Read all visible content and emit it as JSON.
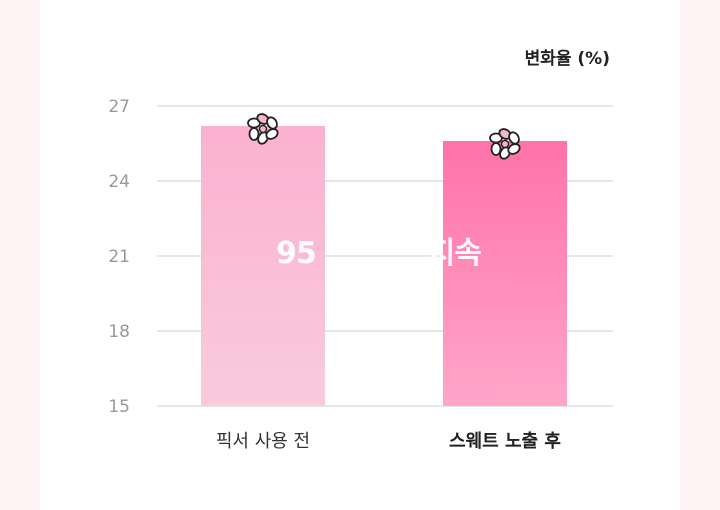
{
  "chart_data": {
    "type": "bar",
    "ylabel": "변화율 (%)",
    "categories": [
      "픽서 사용 전",
      "스웨트 노출 후"
    ],
    "values": [
      26.2,
      25.6
    ],
    "ylim": [
      15,
      27
    ],
    "yticks": [
      "15",
      "18",
      "21",
      "24",
      "27"
    ],
    "grid": true,
    "highlight_category": "스웨트 노출 후",
    "colors": {
      "bar1_top": "#fbb1cf",
      "bar1_bottom": "#f8cbdd",
      "bar2_top": "#ff72a9",
      "bar2_bottom": "#ffa6c9",
      "grid": "#cfcfcf",
      "tick_text": "#999999"
    }
  },
  "watermark": {
    "text_visible": "95",
    "text_end": "지속"
  },
  "icons": [
    "flower-icon",
    "flower-icon"
  ]
}
